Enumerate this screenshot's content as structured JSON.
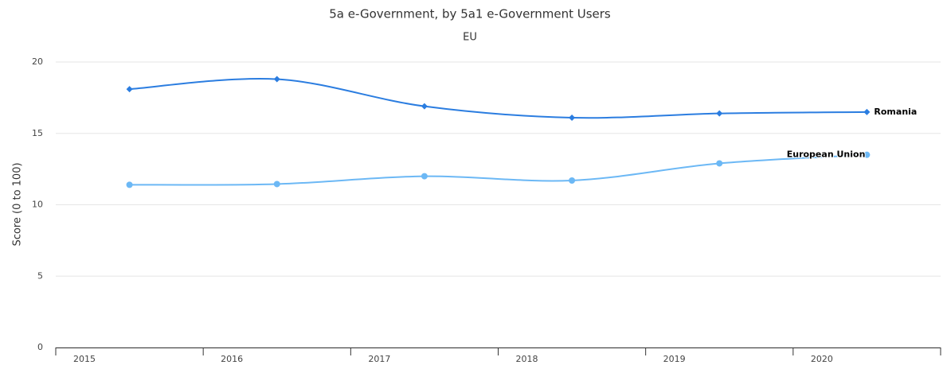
{
  "chart_data": {
    "type": "line",
    "title": "5a e-Government, by 5a1 e-Government Users",
    "subtitle": "EU",
    "y_label": "Score (0 to 100)",
    "categories": [
      "2015",
      "2016",
      "2017",
      "2018",
      "2019",
      "2020"
    ],
    "series": [
      {
        "name": "Romania",
        "color": "#2b7de0",
        "values": [
          18.1,
          18.8,
          16.9,
          16.1,
          16.4,
          16.5
        ]
      },
      {
        "name": "European Union",
        "color": "#6cb8f5",
        "values": [
          11.4,
          11.45,
          12.0,
          11.7,
          12.9,
          13.5
        ]
      }
    ],
    "ylim": [
      0,
      20
    ],
    "yticks": [
      0,
      5,
      10,
      15,
      20
    ],
    "grid": true
  }
}
